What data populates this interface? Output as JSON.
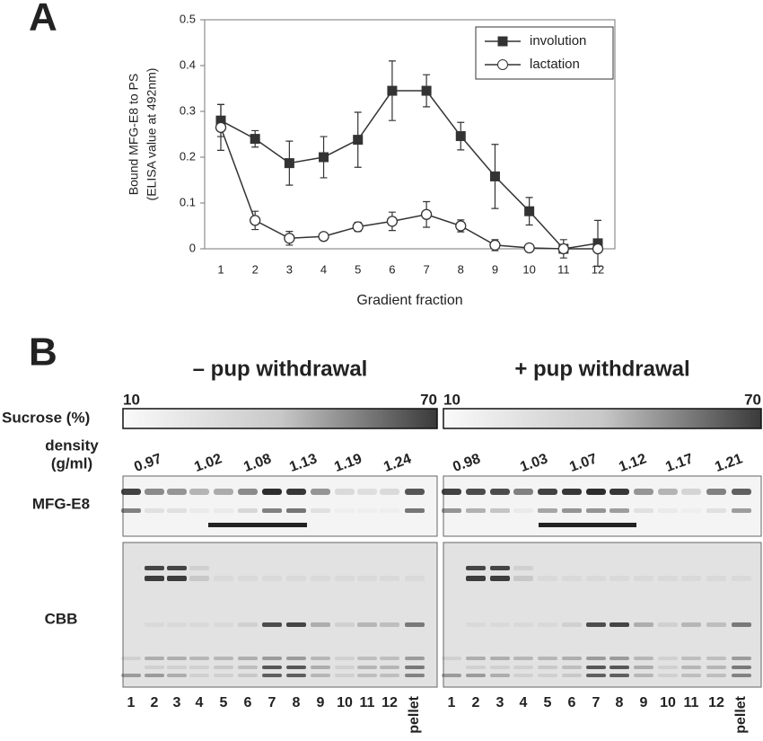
{
  "chart_data": {
    "type": "line",
    "panel_label": "A",
    "ylabel": [
      "Bound MFG-E8 to PS",
      "(ELISA value at 492nm)"
    ],
    "xlabel": "Gradient fraction",
    "categories": [
      "1",
      "2",
      "3",
      "4",
      "5",
      "6",
      "7",
      "8",
      "9",
      "10",
      "11",
      "12"
    ],
    "series": [
      {
        "name": "involution",
        "color": "#333333",
        "marker": "square",
        "values": [
          0.28,
          0.24,
          0.187,
          0.2,
          0.238,
          0.345,
          0.345,
          0.246,
          0.158,
          0.082,
          0.0,
          0.012
        ],
        "errors": [
          0.035,
          0.018,
          0.048,
          0.045,
          0.06,
          0.065,
          0.035,
          0.03,
          0.07,
          0.03,
          0.02,
          0.05
        ]
      },
      {
        "name": "lactation",
        "color": "#333333",
        "marker": "circle",
        "values": [
          0.265,
          0.062,
          0.023,
          0.027,
          0.048,
          0.06,
          0.075,
          0.05,
          0.008,
          0.002,
          0.0,
          0.0
        ],
        "errors": [
          0.05,
          0.02,
          0.015,
          0.005,
          0.01,
          0.02,
          0.028,
          0.013,
          0.012,
          0.003,
          0.003,
          0.004
        ]
      }
    ],
    "ylim": [
      0,
      0.5
    ],
    "yticks": [
      0,
      0.1,
      0.2,
      0.3,
      0.4,
      0.5
    ],
    "legend": "upper right"
  },
  "panel_b": {
    "label": "B",
    "sucrose_label": "Sucrose (%)",
    "density_label": [
      "density",
      "(g/ml)"
    ],
    "row_labels": [
      "MFG-E8",
      "CBB"
    ],
    "sides": [
      {
        "title": "– pup withdrawal",
        "sucrose_min": "10",
        "sucrose_max": "70",
        "densities": [
          "0.97",
          "1.02",
          "1.08",
          "1.13",
          "1.19",
          "1.24"
        ],
        "lanes": [
          "1",
          "2",
          "3",
          "4",
          "5",
          "6",
          "7",
          "8",
          "9",
          "10",
          "11",
          "12",
          "pellet"
        ]
      },
      {
        "title": "+ pup withdrawal",
        "sucrose_min": "10",
        "sucrose_max": "70",
        "densities": [
          "0.98",
          "1.03",
          "1.07",
          "1.12",
          "1.17",
          "1.21"
        ],
        "lanes": [
          "1",
          "2",
          "3",
          "4",
          "5",
          "6",
          "7",
          "8",
          "9",
          "10",
          "11",
          "12",
          "pellet"
        ]
      }
    ]
  }
}
